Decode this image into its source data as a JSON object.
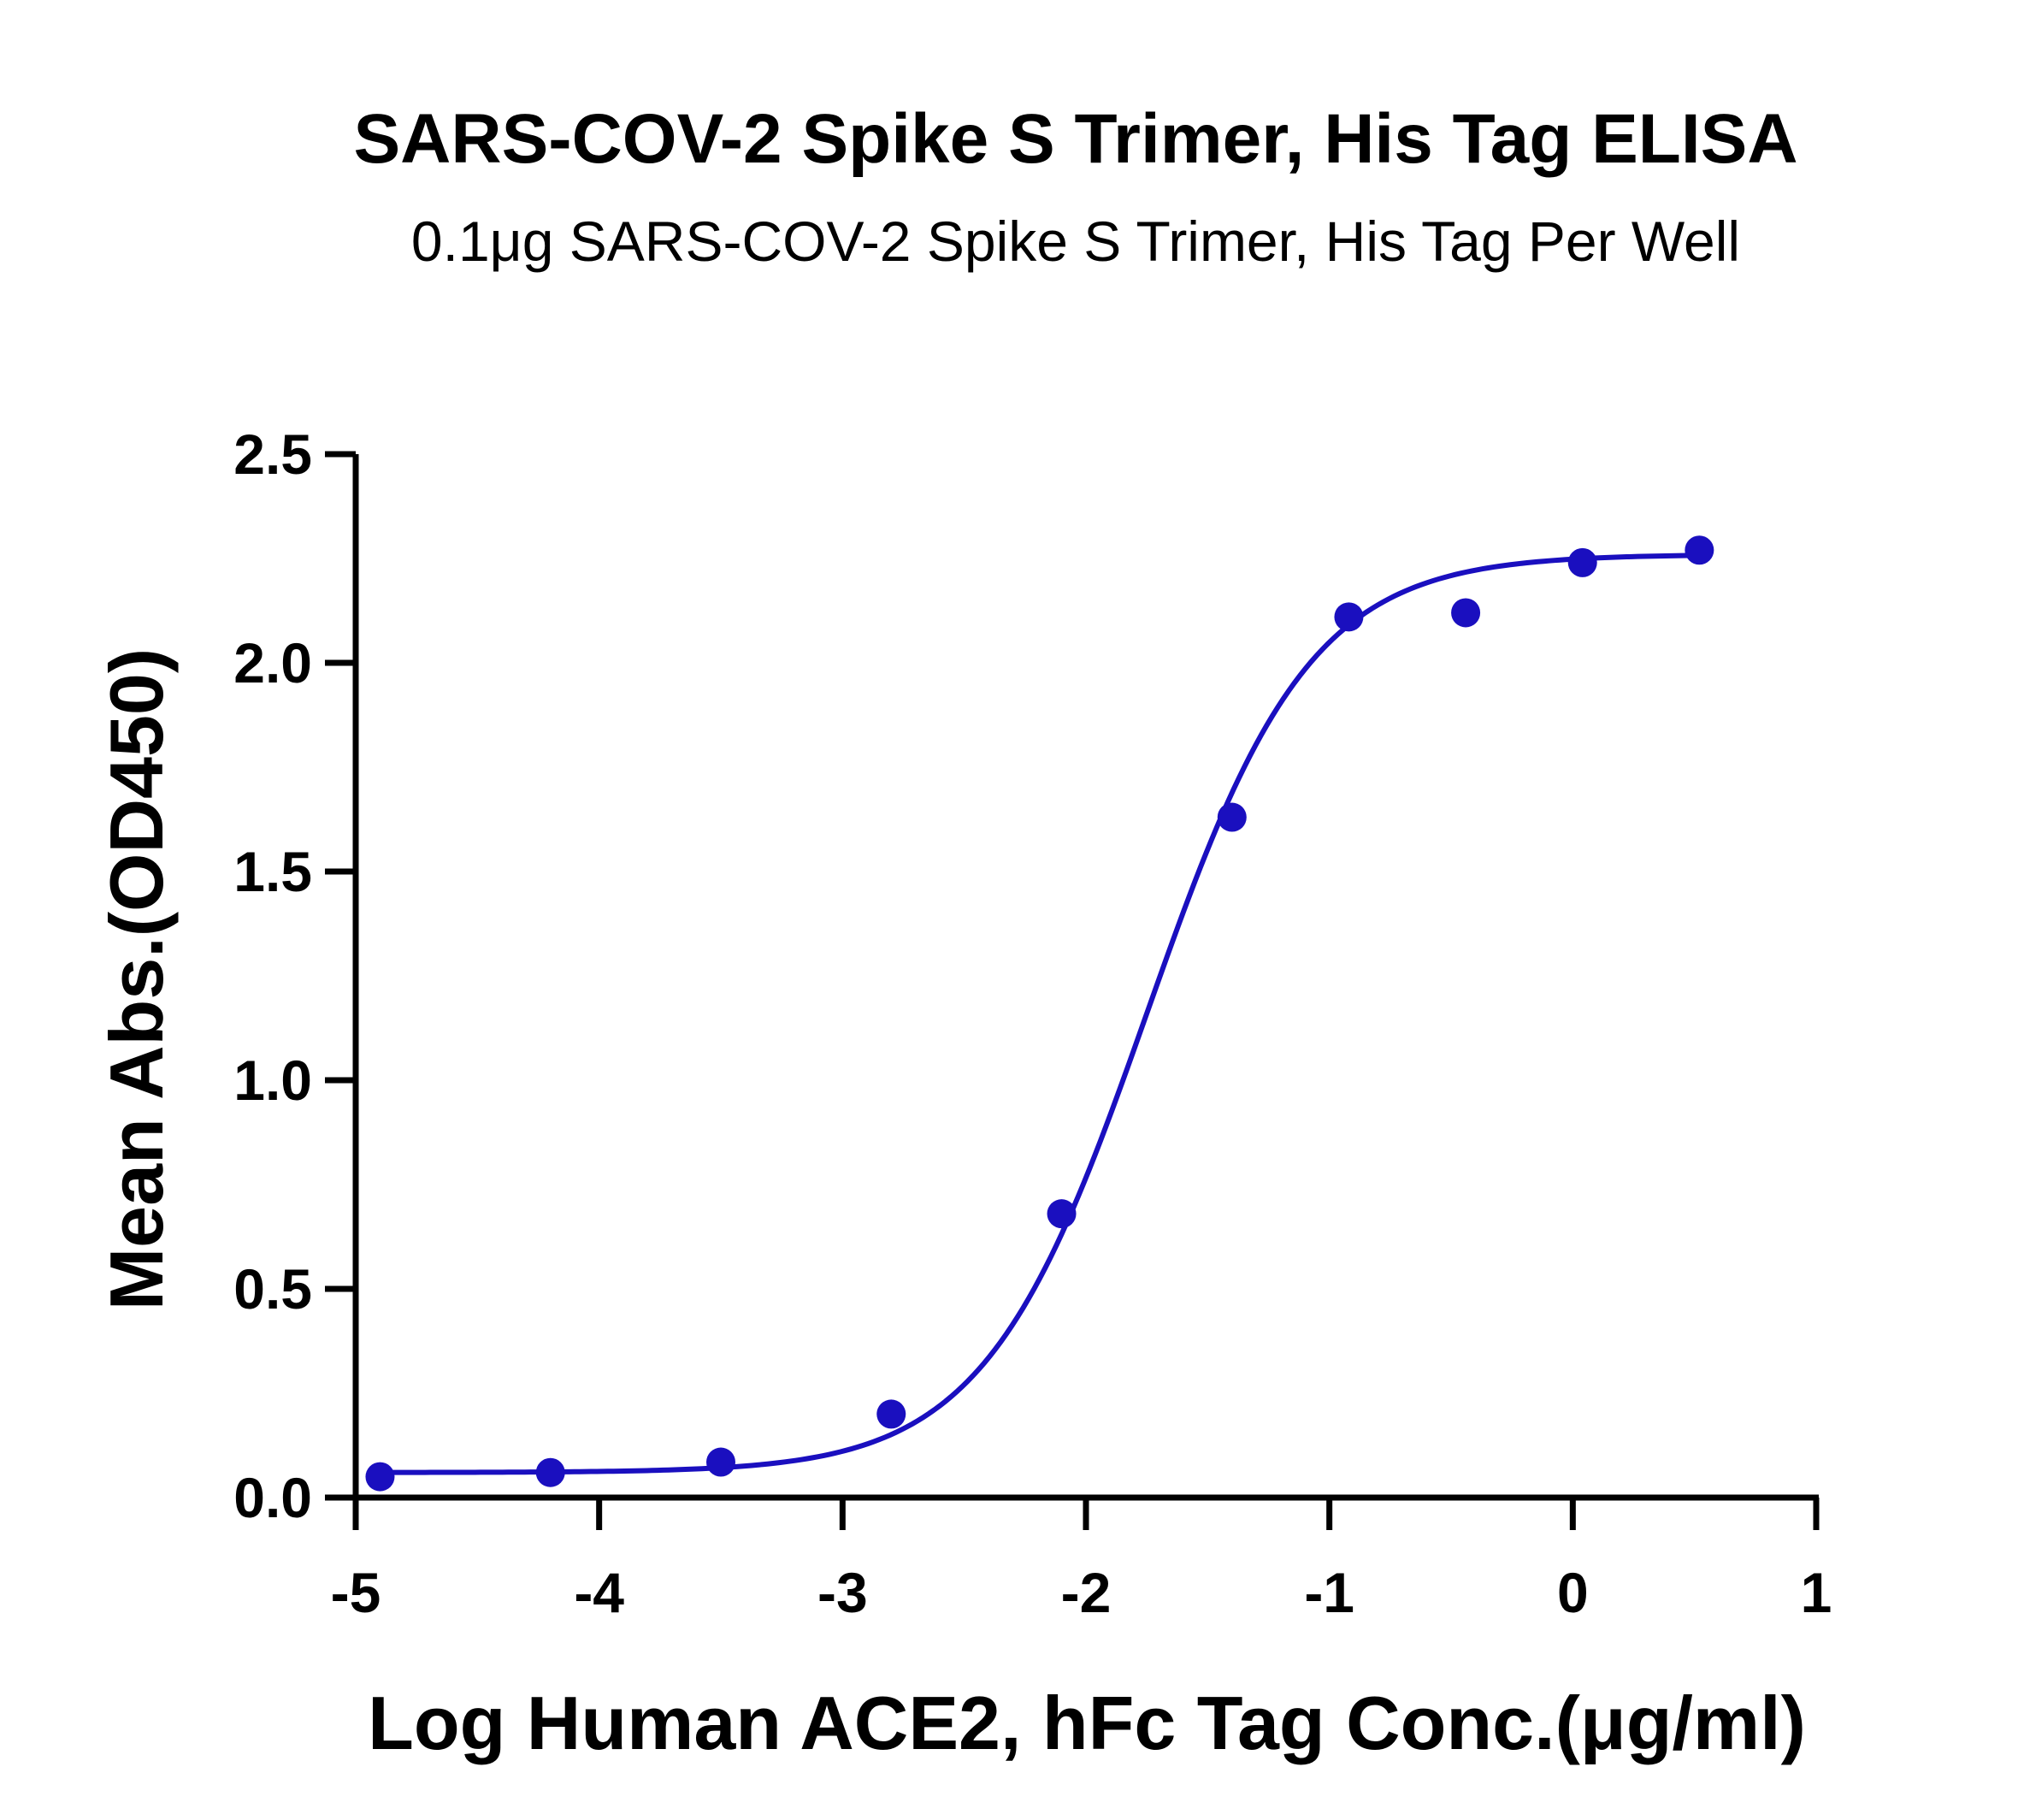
{
  "chart_data": {
    "type": "scatter",
    "title": "SARS-COV-2 Spike S Trimer, His Tag ELISA",
    "subtitle": "0.1μg SARS-COV-2 Spike S Trimer, His Tag Per Well",
    "xlabel": "Log Human ACE2, hFc Tag Conc.(μg/ml)",
    "ylabel": "Mean Abs.(OD450)",
    "xlim": [
      -5,
      1
    ],
    "ylim": [
      0,
      2.5
    ],
    "x_ticks": [
      "-5",
      "-4",
      "-3",
      "-2",
      "-1",
      "0",
      "1"
    ],
    "y_ticks": [
      "0.0",
      "0.5",
      "1.0",
      "1.5",
      "2.0",
      "2.5"
    ],
    "grid": false,
    "series": [
      {
        "x": [
          -4.9,
          -4.2,
          -3.5,
          -2.8,
          -2.1,
          -1.4,
          -0.92,
          -0.44,
          0.04,
          0.52
        ],
        "y": [
          0.05,
          0.06,
          0.085,
          0.2,
          0.68,
          1.63,
          2.11,
          2.12,
          2.24,
          2.27
        ],
        "color": "#1a0fbf",
        "fit": {
          "model": "four-parameter logistic",
          "bottom": 0.06,
          "top": 2.26,
          "logEC50": -1.75,
          "hill": 1.3,
          "color": "#1a0fbf"
        }
      }
    ]
  }
}
